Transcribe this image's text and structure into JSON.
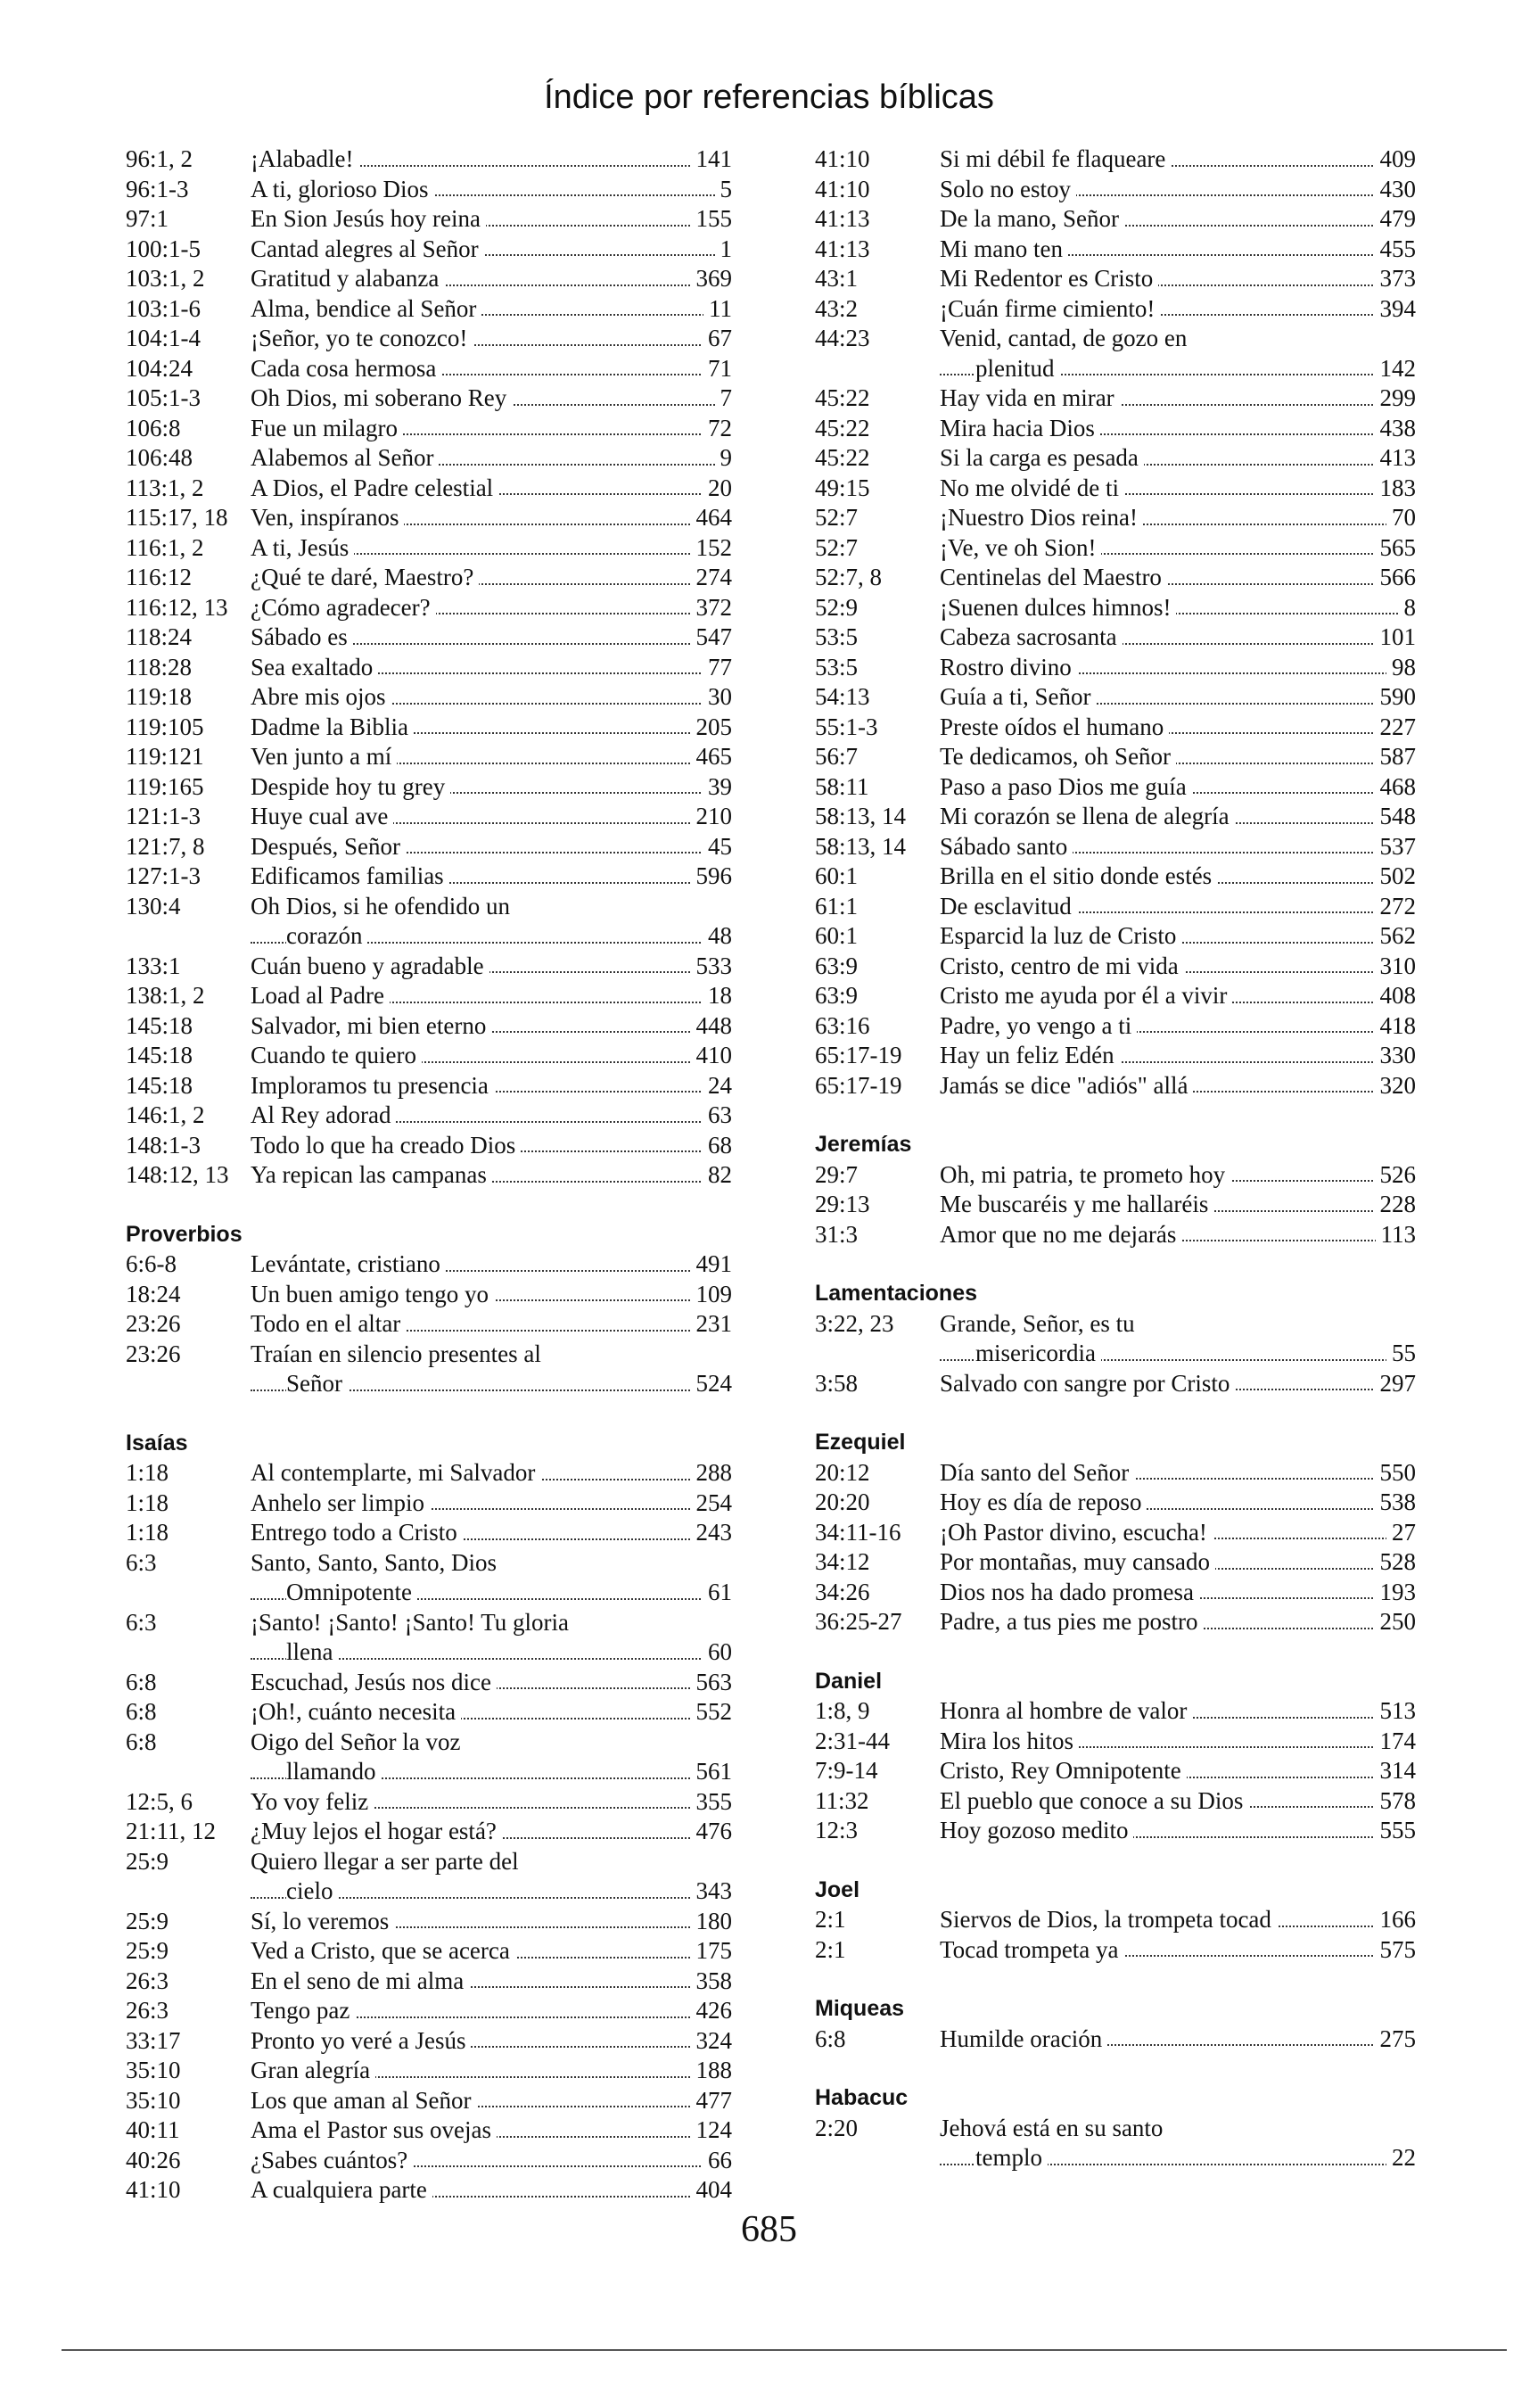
{
  "title": "Índice por referencias bíblicas",
  "columns": [
    {
      "sections": [
        {
          "entries": [
            {
              "ref": "96:1, 2",
              "title": "¡Alabadle!",
              "page": 141
            },
            {
              "ref": "96:1-3",
              "title": "A ti, glorioso Dios",
              "page": 5
            },
            {
              "ref": "97:1",
              "title": "En Sion Jesús hoy reina",
              "page": 155
            },
            {
              "ref": "100:1-5",
              "title": "Cantad alegres al Señor",
              "page": 1
            },
            {
              "ref": "103:1, 2",
              "title": "Gratitud y alabanza",
              "page": 369
            },
            {
              "ref": "103:1-6",
              "title": "Alma, bendice al Señor",
              "page": 11
            },
            {
              "ref": "104:1-4",
              "title": "¡Señor, yo te conozco!",
              "page": 67
            },
            {
              "ref": "104:24",
              "title": "Cada cosa hermosa",
              "page": 71
            },
            {
              "ref": "105:1-3",
              "title": "Oh Dios, mi soberano Rey",
              "page": 7
            },
            {
              "ref": "106:8",
              "title": "Fue un milagro",
              "page": 72
            },
            {
              "ref": "106:48",
              "title": "Alabemos al Señor",
              "page": 9
            },
            {
              "ref": "113:1, 2",
              "title": "A Dios, el Padre celestial",
              "page": 20
            },
            {
              "ref": "115:17, 18",
              "title": "Ven, inspíranos",
              "page": 464
            },
            {
              "ref": "116:1, 2",
              "title": "A ti, Jesús",
              "page": 152
            },
            {
              "ref": "116:12",
              "title": "¿Qué te daré, Maestro?",
              "page": 274
            },
            {
              "ref": "116:12, 13",
              "title": "¿Cómo agradecer?",
              "page": 372
            },
            {
              "ref": "118:24",
              "title": "Sábado es",
              "page": 547
            },
            {
              "ref": "118:28",
              "title": "Sea exaltado",
              "page": 77
            },
            {
              "ref": "119:18",
              "title": "Abre mis ojos",
              "page": 30
            },
            {
              "ref": "119:105",
              "title": "Dadme la Biblia",
              "page": 205
            },
            {
              "ref": "119:121",
              "title": "Ven junto a mí",
              "page": 465
            },
            {
              "ref": "119:165",
              "title": "Despide hoy tu grey",
              "page": 39
            },
            {
              "ref": "121:1-3",
              "title": "Huye cual ave",
              "page": 210
            },
            {
              "ref": "121:7, 8",
              "title": "Después, Señor",
              "page": 45
            },
            {
              "ref": "127:1-3",
              "title": "Edificamos familias",
              "page": 596
            },
            {
              "ref": "130:4",
              "title": [
                "Oh Dios, si he ofendido un",
                "corazón"
              ],
              "page": 48
            },
            {
              "ref": "133:1",
              "title": "Cuán bueno y agradable",
              "page": 533
            },
            {
              "ref": "138:1, 2",
              "title": "Load al Padre",
              "page": 18
            },
            {
              "ref": "145:18",
              "title": "Salvador, mi bien eterno",
              "page": 448
            },
            {
              "ref": "145:18",
              "title": "Cuando te quiero",
              "page": 410
            },
            {
              "ref": "145:18",
              "title": "Imploramos tu presencia",
              "page": 24
            },
            {
              "ref": "146:1, 2",
              "title": "Al Rey adorad",
              "page": 63
            },
            {
              "ref": "148:1-3",
              "title": "Todo lo que ha creado Dios",
              "page": 68
            },
            {
              "ref": "148:12, 13",
              "title": "Ya repican las campanas",
              "page": 82
            }
          ]
        },
        {
          "heading": "Proverbios",
          "entries": [
            {
              "ref": "6:6-8",
              "title": "Levántate, cristiano",
              "page": 491
            },
            {
              "ref": "18:24",
              "title": "Un buen amigo tengo yo",
              "page": 109
            },
            {
              "ref": "23:26",
              "title": "Todo en el altar",
              "page": 231
            },
            {
              "ref": "23:26",
              "title": [
                "Traían en silencio presentes al",
                "Señor"
              ],
              "page": 524
            }
          ]
        },
        {
          "heading": "Isaías",
          "entries": [
            {
              "ref": "1:18",
              "title": "Al contemplarte, mi Salvador",
              "page": 288
            },
            {
              "ref": "1:18",
              "title": "Anhelo ser limpio",
              "page": 254
            },
            {
              "ref": "1:18",
              "title": "Entrego todo a Cristo",
              "page": 243
            },
            {
              "ref": "6:3",
              "title": [
                "Santo, Santo, Santo, Dios",
                "Omnipotente"
              ],
              "page": 61
            },
            {
              "ref": "6:3",
              "title": [
                "¡Santo! ¡Santo! ¡Santo! Tu gloria",
                "llena"
              ],
              "page": 60
            },
            {
              "ref": "6:8",
              "title": "Escuchad, Jesús nos dice",
              "page": 563
            },
            {
              "ref": "6:8",
              "title": "¡Oh!, cuánto necesita",
              "page": 552
            },
            {
              "ref": "6:8",
              "title": [
                "Oigo del Señor la voz",
                "llamando"
              ],
              "page": 561
            },
            {
              "ref": "12:5, 6",
              "title": "Yo voy feliz",
              "page": 355
            },
            {
              "ref": "21:11, 12",
              "title": "¿Muy lejos el hogar está?",
              "page": 476
            },
            {
              "ref": "25:9",
              "title": [
                "Quiero llegar a ser parte del",
                "cielo"
              ],
              "page": 343
            },
            {
              "ref": "25:9",
              "title": "Sí, lo veremos",
              "page": 180
            },
            {
              "ref": "25:9",
              "title": "Ved a Cristo, que se acerca",
              "page": 175
            },
            {
              "ref": "26:3",
              "title": "En el seno de mi alma",
              "page": 358
            },
            {
              "ref": "26:3",
              "title": "Tengo paz",
              "page": 426
            },
            {
              "ref": "33:17",
              "title": "Pronto yo veré a Jesús",
              "page": 324
            },
            {
              "ref": "35:10",
              "title": "Gran alegría",
              "page": 188
            },
            {
              "ref": "35:10",
              "title": "Los que aman al Señor",
              "page": 477
            },
            {
              "ref": "40:11",
              "title": "Ama el Pastor sus ovejas",
              "page": 124
            },
            {
              "ref": "40:26",
              "title": "¿Sabes cuántos?",
              "page": 66
            },
            {
              "ref": "41:10",
              "title": "A cualquiera parte",
              "page": 404
            }
          ]
        }
      ]
    },
    {
      "sections": [
        {
          "entries": [
            {
              "ref": "41:10",
              "title": "Si mi débil fe flaqueare",
              "page": 409
            },
            {
              "ref": "41:10",
              "title": "Solo no estoy",
              "page": 430
            },
            {
              "ref": "41:13",
              "title": "De la mano, Señor",
              "page": 479
            },
            {
              "ref": "41:13",
              "title": "Mi mano ten",
              "page": 455
            },
            {
              "ref": "43:1",
              "title": "Mi Redentor es Cristo",
              "page": 373
            },
            {
              "ref": "43:2",
              "title": "¡Cuán firme cimiento!",
              "page": 394
            },
            {
              "ref": "44:23",
              "title": [
                "Venid, cantad, de gozo en",
                "plenitud"
              ],
              "page": 142
            },
            {
              "ref": "45:22",
              "title": "Hay vida en mirar",
              "page": 299
            },
            {
              "ref": "45:22",
              "title": "Mira hacia Dios",
              "page": 438
            },
            {
              "ref": "45:22",
              "title": "Si la carga es pesada",
              "page": 413
            },
            {
              "ref": "49:15",
              "title": "No me olvidé de ti",
              "page": 183
            },
            {
              "ref": "52:7",
              "title": "¡Nuestro Dios reina!",
              "page": 70
            },
            {
              "ref": "52:7",
              "title": "¡Ve, ve oh Sion!",
              "page": 565
            },
            {
              "ref": "52:7, 8",
              "title": "Centinelas del Maestro",
              "page": 566
            },
            {
              "ref": "52:9",
              "title": "¡Suenen dulces himnos!",
              "page": 8
            },
            {
              "ref": "53:5",
              "title": "Cabeza sacrosanta",
              "page": 101
            },
            {
              "ref": "53:5",
              "title": "Rostro divino",
              "page": 98
            },
            {
              "ref": "54:13",
              "title": "Guía a ti, Señor",
              "page": 590
            },
            {
              "ref": "55:1-3",
              "title": "Preste oídos el humano",
              "page": 227
            },
            {
              "ref": "56:7",
              "title": "Te dedicamos, oh Señor",
              "page": 587
            },
            {
              "ref": "58:11",
              "title": "Paso a paso Dios me guía",
              "page": 468
            },
            {
              "ref": "58:13, 14",
              "title": "Mi corazón se llena de alegría",
              "page": 548
            },
            {
              "ref": "58:13, 14",
              "title": "Sábado santo",
              "page": 537
            },
            {
              "ref": "60:1",
              "title": "Brilla en el sitio donde estés",
              "page": 502
            },
            {
              "ref": "61:1",
              "title": "De esclavitud",
              "page": 272
            },
            {
              "ref": "60:1",
              "title": "Esparcid la luz de Cristo",
              "page": 562
            },
            {
              "ref": "63:9",
              "title": "Cristo, centro de mi vida",
              "page": 310
            },
            {
              "ref": "63:9",
              "title": "Cristo me ayuda por él a vivir",
              "page": 408
            },
            {
              "ref": "63:16",
              "title": "Padre, yo vengo a ti",
              "page": 418
            },
            {
              "ref": "65:17-19",
              "title": "Hay un feliz Edén",
              "page": 330
            },
            {
              "ref": "65:17-19",
              "title": "Jamás se dice \"adiós\" allá",
              "page": 320
            }
          ]
        },
        {
          "heading": "Jeremías",
          "entries": [
            {
              "ref": "29:7",
              "title": "Oh, mi patria, te prometo hoy",
              "page": 526
            },
            {
              "ref": "29:13",
              "title": "Me buscaréis y me hallaréis",
              "page": 228
            },
            {
              "ref": "31:3",
              "title": "Amor que no me dejarás",
              "page": 113
            }
          ]
        },
        {
          "heading": "Lamentaciones",
          "entries": [
            {
              "ref": "3:22, 23",
              "title": [
                "Grande, Señor, es tu",
                "misericordia"
              ],
              "page": 55
            },
            {
              "ref": "3:58",
              "title": "Salvado con sangre por Cristo",
              "page": 297
            }
          ]
        },
        {
          "heading": "Ezequiel",
          "entries": [
            {
              "ref": "20:12",
              "title": "Día santo del Señor",
              "page": 550
            },
            {
              "ref": "20:20",
              "title": "Hoy es día de reposo",
              "page": 538
            },
            {
              "ref": "34:11-16",
              "title": "¡Oh Pastor divino, escucha!",
              "page": 27
            },
            {
              "ref": "34:12",
              "title": "Por montañas, muy cansado",
              "page": 528
            },
            {
              "ref": "34:26",
              "title": "Dios nos ha dado promesa",
              "page": 193
            },
            {
              "ref": "36:25-27",
              "title": "Padre, a tus pies me postro",
              "page": 250
            }
          ]
        },
        {
          "heading": "Daniel",
          "entries": [
            {
              "ref": "1:8, 9",
              "title": "Honra al hombre de valor",
              "page": 513
            },
            {
              "ref": "2:31-44",
              "title": "Mira los hitos",
              "page": 174
            },
            {
              "ref": "7:9-14",
              "title": "Cristo, Rey Omnipotente",
              "page": 314
            },
            {
              "ref": "11:32",
              "title": "El pueblo que conoce a su Dios",
              "page": 578
            },
            {
              "ref": "12:3",
              "title": "Hoy gozoso medito",
              "page": 555
            }
          ]
        },
        {
          "heading": "Joel",
          "entries": [
            {
              "ref": "2:1",
              "title": "Siervos de Dios, la trompeta tocad",
              "page": 166
            },
            {
              "ref": "2:1",
              "title": "Tocad trompeta ya",
              "page": 575
            }
          ]
        },
        {
          "heading": "Miqueas",
          "entries": [
            {
              "ref": "6:8",
              "title": "Humilde oración",
              "page": 275
            }
          ]
        },
        {
          "heading": "Habacuc",
          "entries": [
            {
              "ref": "2:20",
              "title": [
                "Jehová está en su santo",
                "templo"
              ],
              "page": 22
            }
          ]
        }
      ]
    }
  ],
  "page_number": 685
}
